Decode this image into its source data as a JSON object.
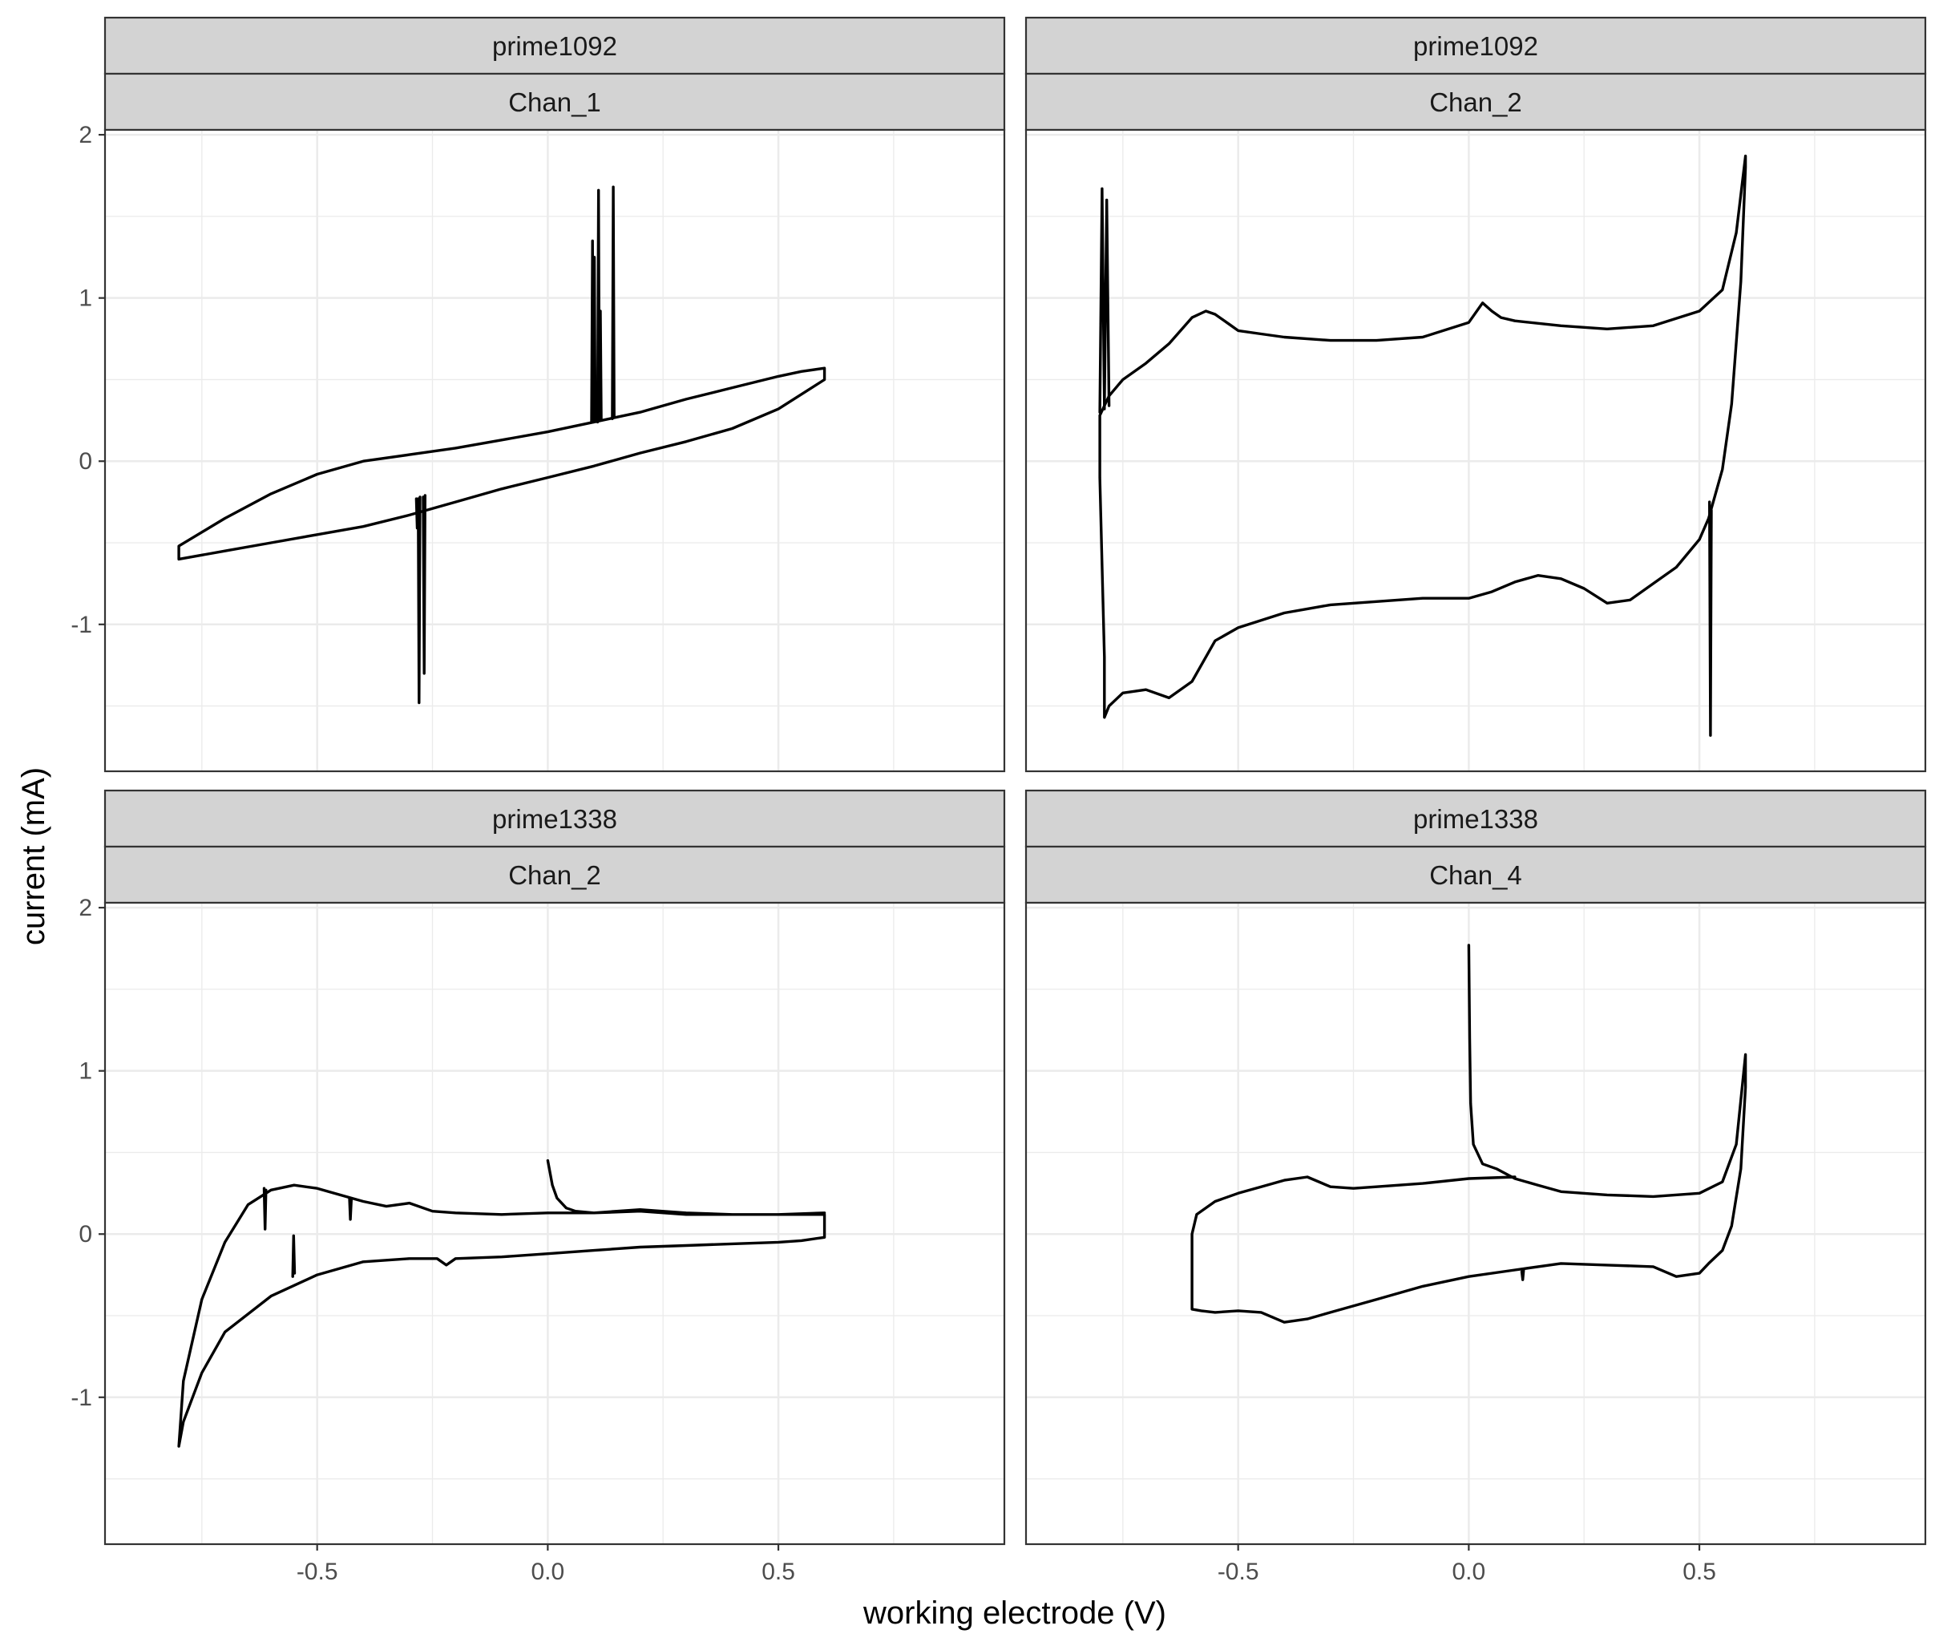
{
  "chart_data": {
    "type": "line",
    "xlabel": "working electrode (V)",
    "ylabel": "current (mA)",
    "xlim": [
      -0.96,
      0.99
    ],
    "ylim": [
      -1.9,
      2.03
    ],
    "xticks": [
      -0.5,
      0.0,
      0.5
    ],
    "xtick_labels": [
      "-0.5",
      "0.0",
      "0.5"
    ],
    "yticks": [
      -1,
      0,
      1,
      2
    ],
    "ytick_labels": [
      "-1",
      "0",
      "1",
      "2"
    ],
    "grid": true,
    "legend": "none",
    "facets": [
      {
        "strip": [
          "prime1092",
          "Chan_1"
        ],
        "series": [
          {
            "x": [
              -0.8,
              -0.7,
              -0.6,
              -0.5,
              -0.4,
              -0.3,
              -0.2,
              -0.1,
              0.0,
              0.1,
              0.2,
              0.3,
              0.4,
              0.5,
              0.6,
              0.6,
              0.55,
              0.5,
              0.4,
              0.3,
              0.2,
              0.1,
              0.0,
              -0.1,
              -0.2,
              -0.3,
              -0.4,
              -0.5,
              -0.6,
              -0.7,
              -0.8,
              -0.8
            ],
            "y": [
              -0.6,
              -0.55,
              -0.5,
              -0.45,
              -0.4,
              -0.33,
              -0.25,
              -0.17,
              -0.1,
              -0.03,
              0.05,
              0.12,
              0.2,
              0.32,
              0.5,
              0.57,
              0.55,
              0.52,
              0.45,
              0.38,
              0.3,
              0.24,
              0.18,
              0.13,
              0.08,
              0.04,
              0.0,
              -0.08,
              -0.2,
              -0.35,
              -0.52,
              -0.6
            ]
          },
          {
            "x": [
              -0.285,
              -0.283,
              -0.281,
              -0.279,
              -0.277
            ],
            "y": [
              -0.23,
              -0.41,
              -0.23,
              -1.48,
              -0.22
            ]
          },
          {
            "x": [
              -0.27,
              -0.268,
              -0.266
            ],
            "y": [
              -0.22,
              -1.3,
              -0.21
            ]
          },
          {
            "x": [
              0.095,
              0.097,
              0.099,
              0.101,
              0.103
            ],
            "y": [
              0.24,
              1.35,
              0.24,
              1.25,
              0.25
            ]
          },
          {
            "x": [
              0.108,
              0.11,
              0.112,
              0.114,
              0.116
            ],
            "y": [
              0.24,
              1.66,
              0.25,
              0.92,
              0.25
            ]
          },
          {
            "x": [
              0.14,
              0.142,
              0.144
            ],
            "y": [
              0.26,
              1.68,
              0.27
            ]
          }
        ]
      },
      {
        "strip": [
          "prime1092",
          "Chan_2"
        ],
        "series": [
          {
            "x": [
              -0.8,
              -0.78,
              -0.75,
              -0.7,
              -0.65,
              -0.6,
              -0.57,
              -0.55,
              -0.52,
              -0.5,
              -0.45,
              -0.4,
              -0.3,
              -0.2,
              -0.1,
              0.0,
              0.03,
              0.05,
              0.07,
              0.1,
              0.2,
              0.3,
              0.4,
              0.5,
              0.55,
              0.58,
              0.6,
              0.6,
              0.59,
              0.57,
              0.55,
              0.52,
              0.5,
              0.45,
              0.4,
              0.35,
              0.3,
              0.25,
              0.2,
              0.15,
              0.1,
              0.05,
              0.0,
              -0.1,
              -0.2,
              -0.3,
              -0.4,
              -0.5,
              -0.55,
              -0.6,
              -0.65,
              -0.7,
              -0.75,
              -0.78,
              -0.79,
              -0.79,
              -0.8,
              -0.8
            ],
            "y": [
              0.28,
              0.4,
              0.5,
              0.6,
              0.72,
              0.88,
              0.92,
              0.9,
              0.84,
              0.8,
              0.78,
              0.76,
              0.74,
              0.74,
              0.76,
              0.85,
              0.97,
              0.92,
              0.88,
              0.86,
              0.83,
              0.81,
              0.83,
              0.92,
              1.05,
              1.4,
              1.87,
              1.8,
              1.1,
              0.35,
              -0.05,
              -0.35,
              -0.48,
              -0.65,
              -0.75,
              -0.85,
              -0.87,
              -0.78,
              -0.72,
              -0.7,
              -0.74,
              -0.8,
              -0.84,
              -0.84,
              -0.86,
              -0.88,
              -0.93,
              -1.02,
              -1.1,
              -1.35,
              -1.45,
              -1.4,
              -1.42,
              -1.5,
              -1.57,
              -1.2,
              -0.1,
              0.28
            ]
          },
          {
            "x": [
              -0.8,
              -0.795,
              -0.79,
              -0.785,
              -0.78
            ],
            "y": [
              0.3,
              1.67,
              0.32,
              1.6,
              0.34
            ]
          },
          {
            "x": [
              0.522,
              0.524,
              0.526
            ],
            "y": [
              -0.25,
              -1.68,
              -0.3
            ]
          }
        ]
      },
      {
        "strip": [
          "prime1338",
          "Chan_2"
        ],
        "series": [
          {
            "x": [
              0.0,
              0.01,
              0.02,
              0.04,
              0.06,
              0.1,
              0.15,
              0.2,
              0.3,
              0.4,
              0.5,
              0.6,
              0.6,
              0.55,
              0.5,
              0.4,
              0.3,
              0.2,
              0.1,
              0.0,
              -0.1,
              -0.2,
              -0.22,
              -0.24,
              -0.3,
              -0.4,
              -0.5,
              -0.6,
              -0.7,
              -0.75,
              -0.79,
              -0.8,
              -0.79,
              -0.75,
              -0.7,
              -0.65,
              -0.6,
              -0.55,
              -0.5,
              -0.45,
              -0.4,
              -0.35,
              -0.3,
              -0.25,
              -0.2,
              -0.1,
              0.0,
              0.1,
              0.2,
              0.3,
              0.4,
              0.5,
              0.6
            ],
            "y": [
              0.45,
              0.3,
              0.22,
              0.16,
              0.14,
              0.13,
              0.14,
              0.15,
              0.13,
              0.12,
              0.12,
              0.12,
              -0.02,
              -0.04,
              -0.05,
              -0.06,
              -0.07,
              -0.08,
              -0.1,
              -0.12,
              -0.14,
              -0.15,
              -0.19,
              -0.15,
              -0.15,
              -0.17,
              -0.25,
              -0.38,
              -0.6,
              -0.85,
              -1.15,
              -1.3,
              -0.9,
              -0.4,
              -0.05,
              0.18,
              0.27,
              0.3,
              0.28,
              0.24,
              0.2,
              0.17,
              0.19,
              0.14,
              0.13,
              0.12,
              0.13,
              0.13,
              0.14,
              0.12,
              0.12,
              0.12,
              0.13
            ]
          },
          {
            "x": [
              -0.615,
              -0.613,
              -0.611
            ],
            "y": [
              0.28,
              0.03,
              0.27
            ]
          },
          {
            "x": [
              -0.553,
              -0.551,
              -0.549
            ],
            "y": [
              -0.26,
              -0.01,
              -0.24
            ]
          },
          {
            "x": [
              -0.43,
              -0.428,
              -0.426
            ],
            "y": [
              0.22,
              0.09,
              0.21
            ]
          }
        ]
      },
      {
        "strip": [
          "prime1338",
          "Chan_4"
        ],
        "series": [
          {
            "x": [
              0.0,
              0.002,
              0.004,
              0.01,
              0.03,
              0.06,
              0.1,
              0.15,
              0.2,
              0.3,
              0.4,
              0.5,
              0.55,
              0.58,
              0.6,
              0.6,
              0.59,
              0.57,
              0.55,
              0.52,
              0.5,
              0.45,
              0.4,
              0.3,
              0.2,
              0.1,
              0.0,
              -0.1,
              -0.2,
              -0.3,
              -0.35,
              -0.4,
              -0.45,
              -0.5,
              -0.55,
              -0.58,
              -0.6,
              -0.6,
              -0.59,
              -0.55,
              -0.5,
              -0.45,
              -0.4,
              -0.35,
              -0.3,
              -0.25,
              -0.2,
              -0.1,
              0.0,
              0.1
            ],
            "y": [
              1.77,
              1.2,
              0.8,
              0.55,
              0.43,
              0.4,
              0.34,
              0.3,
              0.26,
              0.24,
              0.23,
              0.25,
              0.32,
              0.55,
              1.1,
              0.9,
              0.4,
              0.05,
              -0.1,
              -0.18,
              -0.24,
              -0.26,
              -0.2,
              -0.19,
              -0.18,
              -0.22,
              -0.26,
              -0.32,
              -0.4,
              -0.48,
              -0.52,
              -0.54,
              -0.48,
              -0.47,
              -0.48,
              -0.47,
              -0.46,
              0.0,
              0.12,
              0.2,
              0.25,
              0.29,
              0.33,
              0.35,
              0.29,
              0.28,
              0.29,
              0.31,
              0.34,
              0.35
            ]
          },
          {
            "x": [
              0.115,
              0.117,
              0.119
            ],
            "y": [
              -0.23,
              -0.28,
              -0.22
            ]
          }
        ]
      }
    ]
  }
}
